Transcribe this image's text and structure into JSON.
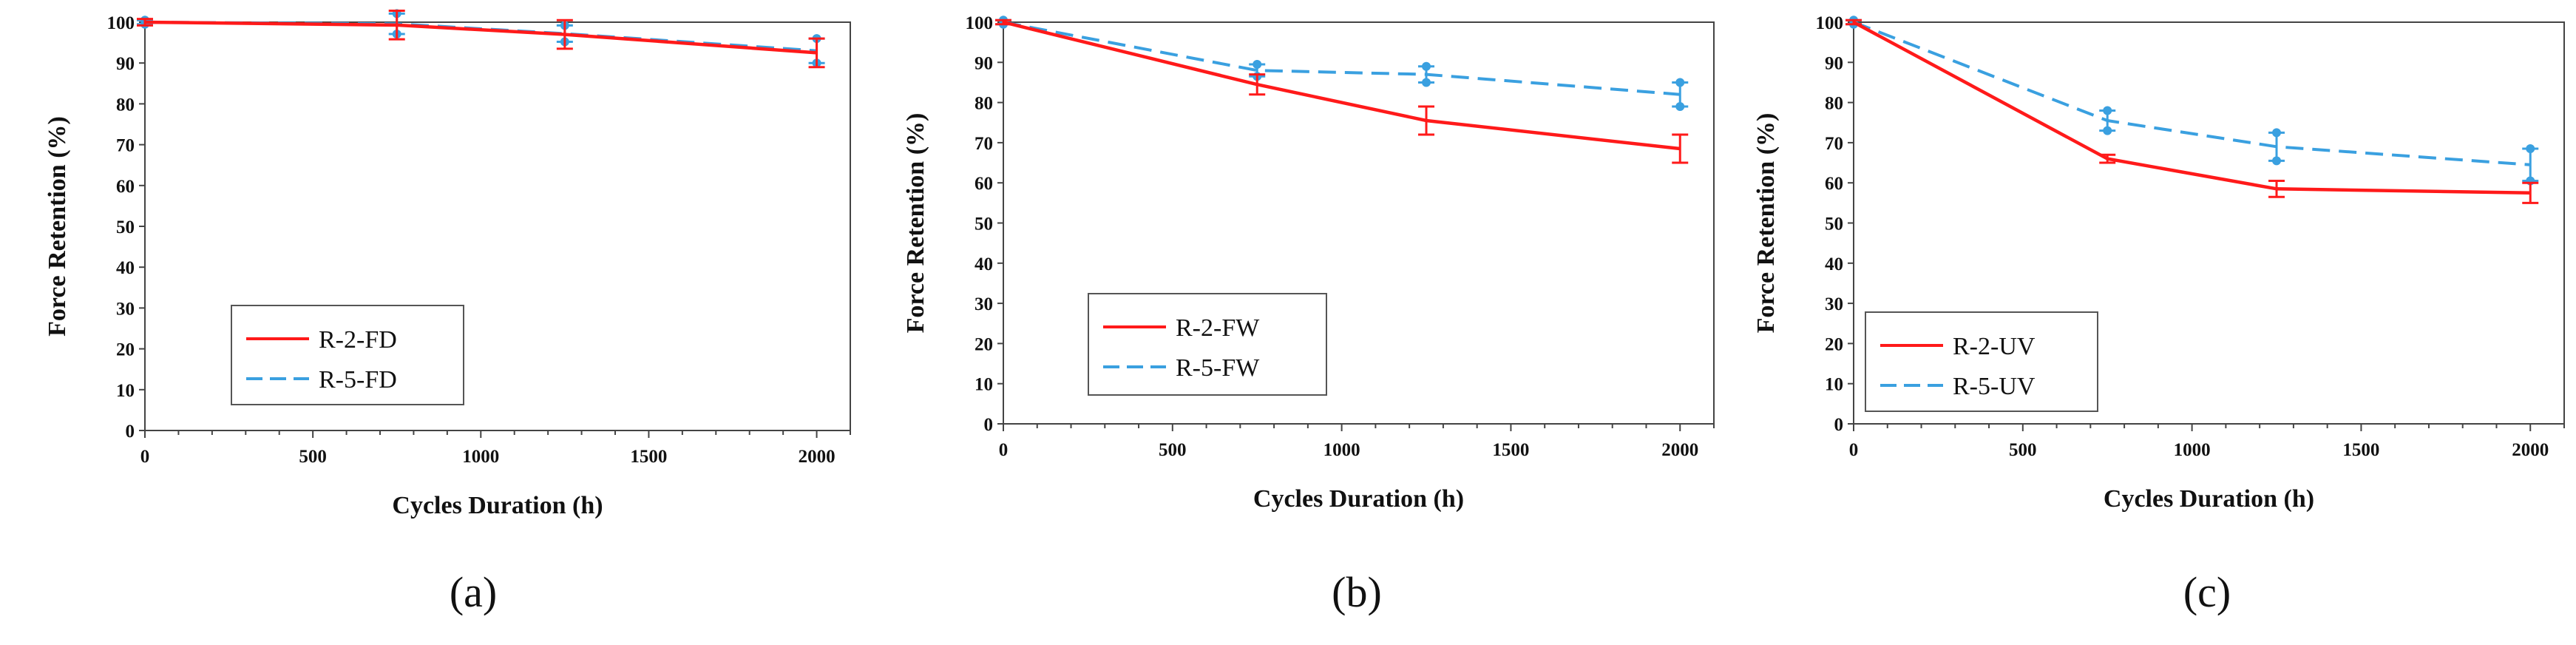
{
  "chart_data": [
    {
      "type": "line",
      "caption": "(a)",
      "xlabel": "Cycles Duration  (h)",
      "ylabel": "Force Retention (%)",
      "xlim": [
        0,
        2100
      ],
      "ylim": [
        0,
        100
      ],
      "xticks": [
        "0",
        "500",
        "1000",
        "1500",
        "2000"
      ],
      "yticks": [
        "0",
        "10",
        "20",
        "30",
        "40",
        "50",
        "60",
        "70",
        "80",
        "90",
        "100"
      ],
      "x": [
        0,
        750,
        1250,
        2000
      ],
      "series": [
        {
          "name": "R-2-FD",
          "color": "#ff1a1a",
          "style": "solid",
          "values": [
            100,
            99.3,
            97,
            92.5
          ],
          "error": [
            0.8,
            3.5,
            3.5,
            3.5
          ]
        },
        {
          "name": "R-5-FD",
          "color": "#3aa0e0",
          "style": "dashed",
          "values": [
            100,
            99.6,
            97.2,
            93.0
          ],
          "error": [
            0.5,
            2.5,
            2.0,
            3.0
          ]
        }
      ],
      "legend": [
        "R-2-FD",
        "R-5-FD"
      ]
    },
    {
      "type": "line",
      "caption": "(b)",
      "xlabel": "Cycles Duration  (h)",
      "ylabel": "Force Retention (%)",
      "xlim": [
        0,
        2100
      ],
      "ylim": [
        0,
        100
      ],
      "xticks": [
        "0",
        "500",
        "1000",
        "1500",
        "2000"
      ],
      "yticks": [
        "0",
        "10",
        "20",
        "30",
        "40",
        "50",
        "60",
        "70",
        "80",
        "90",
        "100"
      ],
      "x": [
        0,
        750,
        1250,
        2000
      ],
      "series": [
        {
          "name": "R-2-FW",
          "color": "#ff1a1a",
          "style": "solid",
          "values": [
            100,
            84.5,
            75.5,
            68.5
          ],
          "error": [
            0.5,
            2.5,
            3.5,
            3.5
          ]
        },
        {
          "name": "R-5-FW",
          "color": "#3aa0e0",
          "style": "dashed",
          "values": [
            100,
            88.0,
            87.0,
            82.0
          ],
          "error": [
            0.5,
            1.5,
            2.0,
            3.0
          ]
        }
      ],
      "legend": [
        "R-2-FW",
        "R-5-FW"
      ]
    },
    {
      "type": "line",
      "caption": "(c)",
      "xlabel": "Cycles Duration  (h)",
      "ylabel": "Force Retention (%)",
      "xlim": [
        0,
        2100
      ],
      "ylim": [
        0,
        100
      ],
      "xticks": [
        "0",
        "500",
        "1000",
        "1500",
        "2000"
      ],
      "yticks": [
        "0",
        "10",
        "20",
        "30",
        "40",
        "50",
        "60",
        "70",
        "80",
        "90",
        "100"
      ],
      "x": [
        0,
        750,
        1250,
        2000
      ],
      "series": [
        {
          "name": "R-2-UV",
          "color": "#ff1a1a",
          "style": "solid",
          "values": [
            100,
            66,
            58.5,
            57.5
          ],
          "error": [
            0.5,
            1.0,
            2.0,
            2.5
          ]
        },
        {
          "name": "R-5-UV",
          "color": "#3aa0e0",
          "style": "dashed",
          "values": [
            100,
            75.5,
            69.0,
            64.5
          ],
          "error": [
            0.5,
            2.5,
            3.5,
            4.0
          ]
        }
      ],
      "legend": [
        "R-2-UV",
        "R-5-UV"
      ]
    }
  ]
}
